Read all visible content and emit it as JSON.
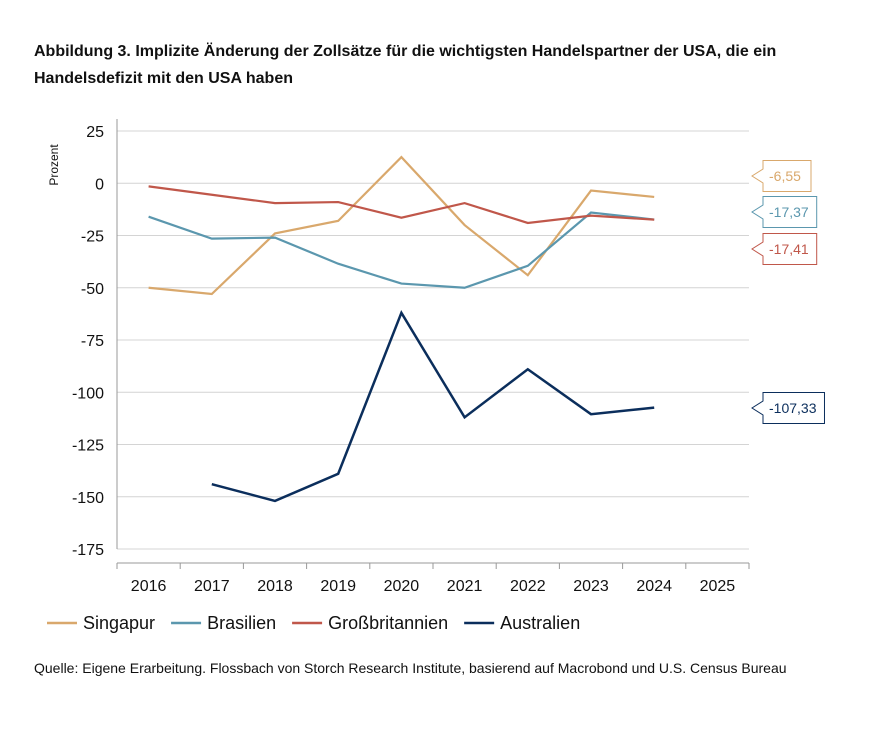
{
  "title": "Abbildung 3. Implizite Änderung der Zollsätze für die wichtigsten Handelspartner der USA, die ein Handelsdefizit mit den USA haben",
  "source": "Quelle: Eigene Erarbeitung. Flossbach von Storch Research Institute, basierend auf Macrobond und U.S. Census Bureau",
  "chart_data": {
    "type": "line",
    "title": "Abbildung 3. Implizite Änderung der Zollsätze für die wichtigsten Handelspartner der USA, die ein Handelsdefizit mit den USA haben",
    "ylabel": "Prozent",
    "xlabel": "",
    "ylim": [
      -175,
      25
    ],
    "yticks": [
      25,
      0,
      -25,
      -50,
      -75,
      -100,
      -125,
      -150,
      -175
    ],
    "ytick_labels": [
      "25",
      "0",
      "-25",
      "-50",
      "-75",
      "-100",
      "-125",
      "-150",
      "-175"
    ],
    "xlim": [
      2015.5,
      2025.5
    ],
    "xticks": [
      2016,
      2017,
      2018,
      2019,
      2020,
      2021,
      2022,
      2023,
      2024,
      2025
    ],
    "xtick_labels": [
      "2016",
      "2017",
      "2018",
      "2019",
      "2020",
      "2021",
      "2022",
      "2023",
      "2024",
      "2025"
    ],
    "grid": true,
    "legend_position": "bottom",
    "series": [
      {
        "name": "Singapur",
        "color": "#D9A86C",
        "points": [
          [
            2016.0,
            -50
          ],
          [
            2017.0,
            -53
          ],
          [
            2018.0,
            -24
          ],
          [
            2019.0,
            -18
          ],
          [
            2020.0,
            12.5
          ],
          [
            2021.0,
            -20
          ],
          [
            2022.0,
            -44
          ],
          [
            2023.0,
            -3.5
          ],
          [
            2024.0,
            -6.55
          ]
        ],
        "end_label": "-6,55"
      },
      {
        "name": "Brasilien",
        "color": "#5B97AE",
        "points": [
          [
            2016.0,
            -16
          ],
          [
            2017.0,
            -26.5
          ],
          [
            2018.0,
            -26
          ],
          [
            2019.0,
            -38.5
          ],
          [
            2020.0,
            -48
          ],
          [
            2021.0,
            -50
          ],
          [
            2022.0,
            -39.5
          ],
          [
            2023.0,
            -14
          ],
          [
            2024.0,
            -17.37
          ]
        ],
        "end_label": "-17,37"
      },
      {
        "name": "Großbritannien",
        "color": "#C0574A",
        "points": [
          [
            2016.0,
            -1.5
          ],
          [
            2017.0,
            -5.5
          ],
          [
            2018.0,
            -9.5
          ],
          [
            2019.0,
            -9
          ],
          [
            2020.0,
            -16.5
          ],
          [
            2021.0,
            -9.5
          ],
          [
            2022.0,
            -19
          ],
          [
            2023.0,
            -15.5
          ],
          [
            2024.0,
            -17.41
          ]
        ],
        "end_label": "-17,41"
      },
      {
        "name": "Australien",
        "color": "#0B2E5C",
        "points": [
          [
            2017.0,
            -144
          ],
          [
            2018.0,
            -152
          ],
          [
            2019.0,
            -139
          ],
          [
            2020.0,
            -62
          ],
          [
            2021.0,
            -112
          ],
          [
            2022.0,
            -89
          ],
          [
            2023.0,
            -110.5
          ],
          [
            2024.0,
            -107.33
          ]
        ],
        "end_label": "-107,33"
      }
    ]
  }
}
